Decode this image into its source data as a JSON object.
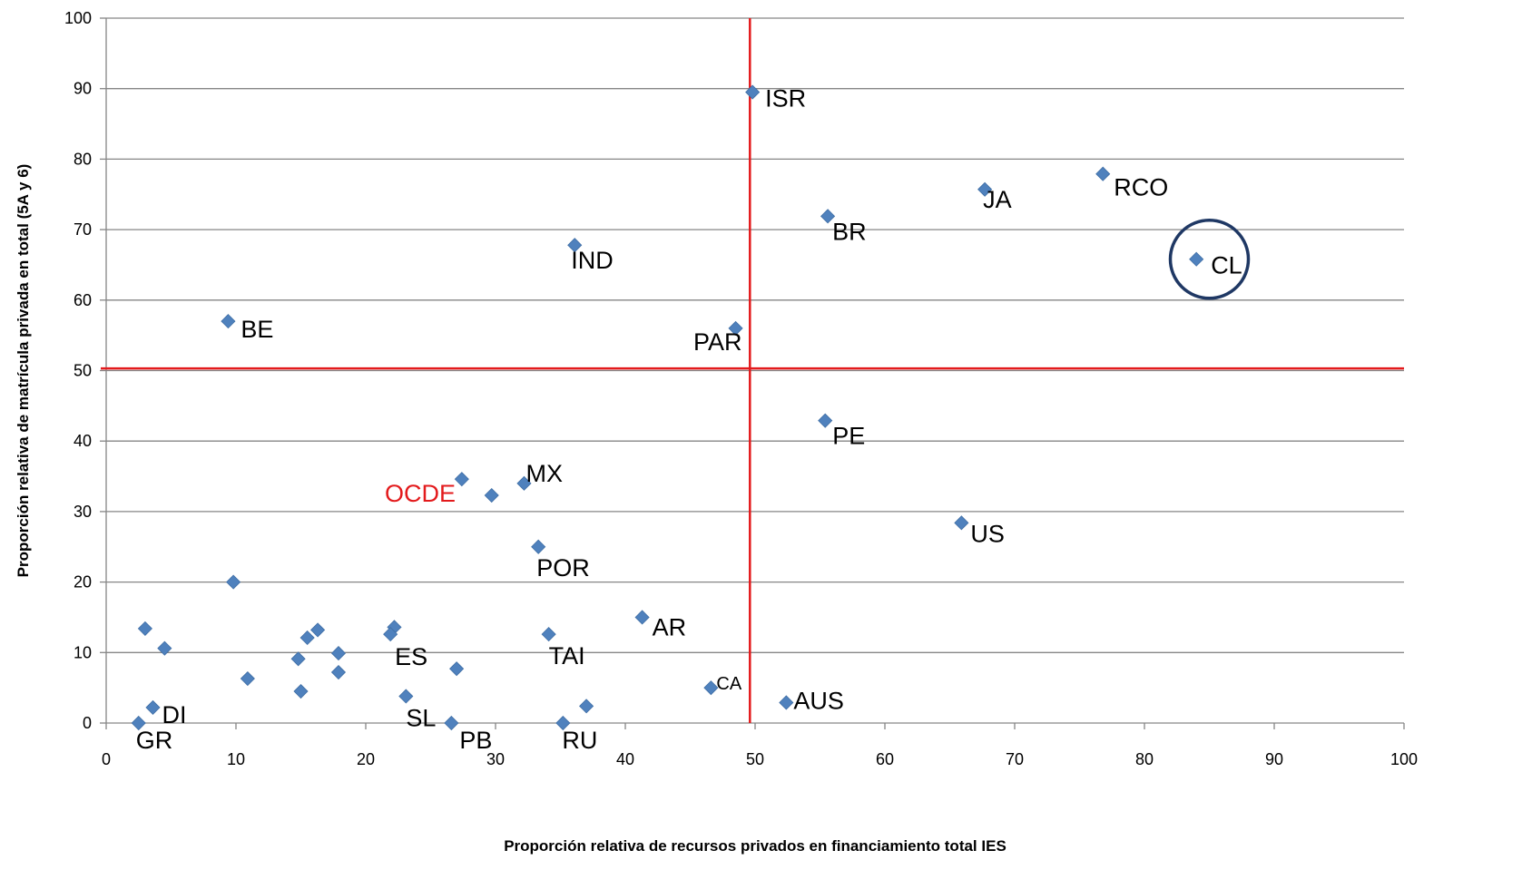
{
  "chart_data": {
    "type": "scatter",
    "xlabel": "Proporción relativa de recursos privados en financiamiento total IES",
    "ylabel": "Proporción relativa de matrícula privada en total (5A y 6)",
    "xlim": [
      0,
      100
    ],
    "ylim": [
      0,
      100
    ],
    "xticks": [
      "0",
      "10",
      "20",
      "30",
      "40",
      "50",
      "60",
      "70",
      "80",
      "90",
      "100"
    ],
    "yticks": [
      "0",
      "10",
      "20",
      "30",
      "40",
      "50",
      "60",
      "70",
      "80",
      "90",
      "100"
    ],
    "grid": "horizontal",
    "marker_color": "#4f81bd",
    "reference_line_color": "#e31a1c",
    "highlight_color": "#1f3864",
    "reference_lines": {
      "x": 49.6,
      "y": 50.3
    },
    "highlight_circle": {
      "x": 85,
      "y": 65.8,
      "label": "CL"
    },
    "points": [
      {
        "x": 49.8,
        "y": 89.5,
        "label": "ISR"
      },
      {
        "x": 76.8,
        "y": 77.9,
        "label": "RCO"
      },
      {
        "x": 67.7,
        "y": 75.7,
        "label": "JA"
      },
      {
        "x": 55.6,
        "y": 71.9,
        "label": "BR"
      },
      {
        "x": 36.1,
        "y": 67.8,
        "label": "IND"
      },
      {
        "x": 84.0,
        "y": 65.8,
        "label": "CL"
      },
      {
        "x": 9.4,
        "y": 57.0,
        "label": "BE"
      },
      {
        "x": 48.5,
        "y": 56.0,
        "label": "PAR"
      },
      {
        "x": 55.4,
        "y": 42.9,
        "label": "PE"
      },
      {
        "x": 27.4,
        "y": 34.6,
        "label": ""
      },
      {
        "x": 32.2,
        "y": 34.0,
        "label": "MX"
      },
      {
        "x": 29.7,
        "y": 32.3,
        "label": ""
      },
      {
        "x": 65.9,
        "y": 28.4,
        "label": "US"
      },
      {
        "x": 33.3,
        "y": 25.0,
        "label": "POR"
      },
      {
        "x": 9.8,
        "y": 20.0,
        "label": ""
      },
      {
        "x": 41.3,
        "y": 15.0,
        "label": "AR"
      },
      {
        "x": 3.0,
        "y": 13.4,
        "label": ""
      },
      {
        "x": 16.3,
        "y": 13.2,
        "label": ""
      },
      {
        "x": 22.2,
        "y": 13.6,
        "label": ""
      },
      {
        "x": 21.9,
        "y": 12.6,
        "label": "ES"
      },
      {
        "x": 34.1,
        "y": 12.6,
        "label": "TAI"
      },
      {
        "x": 15.5,
        "y": 12.1,
        "label": ""
      },
      {
        "x": 4.5,
        "y": 10.6,
        "label": ""
      },
      {
        "x": 17.9,
        "y": 9.9,
        "label": ""
      },
      {
        "x": 14.8,
        "y": 9.1,
        "label": ""
      },
      {
        "x": 27.0,
        "y": 7.7,
        "label": ""
      },
      {
        "x": 17.9,
        "y": 7.2,
        "label": ""
      },
      {
        "x": 10.9,
        "y": 6.3,
        "label": ""
      },
      {
        "x": 46.6,
        "y": 5.0,
        "label": "CA"
      },
      {
        "x": 15.0,
        "y": 4.5,
        "label": ""
      },
      {
        "x": 23.1,
        "y": 3.8,
        "label": "SL"
      },
      {
        "x": 52.4,
        "y": 2.9,
        "label": "AUS"
      },
      {
        "x": 37.0,
        "y": 2.4,
        "label": ""
      },
      {
        "x": 3.6,
        "y": 2.2,
        "label": "DI"
      },
      {
        "x": 2.5,
        "y": 0.0,
        "label": "GR"
      },
      {
        "x": 26.6,
        "y": 0.0,
        "label": "PB"
      },
      {
        "x": 35.2,
        "y": 0.0,
        "label": "RU"
      }
    ],
    "annotations": [
      {
        "text": "OCDE",
        "color": "#e31a1c",
        "near": "x 27.4, y 34.6"
      }
    ]
  }
}
